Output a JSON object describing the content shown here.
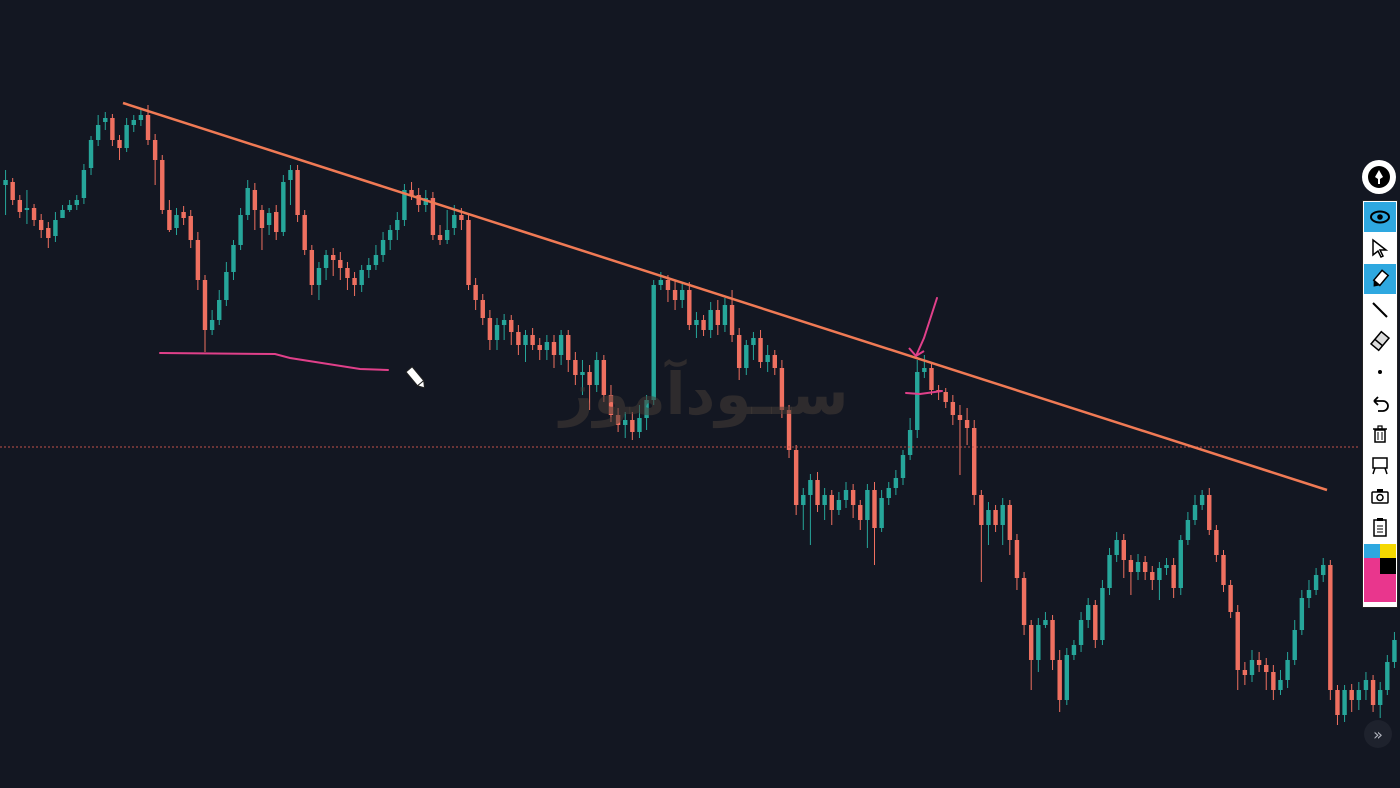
{
  "chart_data": {
    "type": "candlestick",
    "title": "",
    "xlabel": "",
    "ylabel": "",
    "grid": false,
    "ylim": [
      0,
      788
    ],
    "colors": {
      "up": "#26a69a",
      "down": "#ef7060",
      "background": "#131722",
      "trendline": "#f07a55",
      "drawing": "#e0408a",
      "hline": "#c0504a"
    },
    "candles": [
      [
        185,
        180,
        170,
        215
      ],
      [
        182,
        200,
        178,
        205
      ],
      [
        200,
        212,
        195,
        218
      ],
      [
        210,
        208,
        190,
        224
      ],
      [
        208,
        220,
        204,
        226
      ],
      [
        220,
        230,
        214,
        238
      ],
      [
        228,
        238,
        222,
        248
      ],
      [
        236,
        220,
        212,
        242
      ],
      [
        218,
        210,
        205,
        216
      ],
      [
        210,
        205,
        200,
        212
      ],
      [
        205,
        200,
        195,
        210
      ],
      [
        198,
        170,
        164,
        204
      ],
      [
        168,
        140,
        136,
        175
      ],
      [
        140,
        125,
        115,
        146
      ],
      [
        122,
        118,
        112,
        130
      ],
      [
        118,
        140,
        114,
        146
      ],
      [
        140,
        148,
        135,
        160
      ],
      [
        148,
        125,
        118,
        152
      ],
      [
        125,
        120,
        115,
        132
      ],
      [
        120,
        115,
        110,
        126
      ],
      [
        115,
        140,
        105,
        145
      ],
      [
        140,
        160,
        134,
        185
      ],
      [
        160,
        210,
        155,
        214
      ],
      [
        210,
        230,
        200,
        232
      ],
      [
        228,
        215,
        208,
        235
      ],
      [
        212,
        218,
        206,
        225
      ],
      [
        216,
        240,
        210,
        248
      ],
      [
        240,
        280,
        232,
        290
      ],
      [
        280,
        330,
        275,
        352
      ],
      [
        330,
        320,
        310,
        335
      ],
      [
        320,
        300,
        290,
        325
      ],
      [
        300,
        272,
        262,
        306
      ],
      [
        272,
        245,
        240,
        280
      ],
      [
        245,
        215,
        208,
        250
      ],
      [
        215,
        188,
        180,
        220
      ],
      [
        190,
        210,
        183,
        230
      ],
      [
        210,
        228,
        205,
        250
      ],
      [
        225,
        213,
        208,
        235
      ],
      [
        212,
        232,
        205,
        240
      ],
      [
        232,
        182,
        175,
        236
      ],
      [
        180,
        170,
        165,
        205
      ],
      [
        170,
        215,
        165,
        222
      ],
      [
        215,
        250,
        210,
        255
      ],
      [
        250,
        285,
        245,
        295
      ],
      [
        285,
        268,
        262,
        300
      ],
      [
        268,
        255,
        250,
        280
      ],
      [
        255,
        260,
        248,
        276
      ],
      [
        260,
        268,
        252,
        280
      ],
      [
        268,
        278,
        262,
        290
      ],
      [
        278,
        285,
        272,
        296
      ],
      [
        285,
        270,
        265,
        292
      ],
      [
        270,
        265,
        258,
        278
      ],
      [
        265,
        255,
        245,
        270
      ],
      [
        255,
        240,
        232,
        262
      ],
      [
        240,
        230,
        225,
        250
      ],
      [
        230,
        220,
        212,
        240
      ],
      [
        220,
        190,
        184,
        226
      ],
      [
        190,
        195,
        182,
        200
      ],
      [
        195,
        205,
        188,
        212
      ],
      [
        205,
        198,
        190,
        212
      ],
      [
        198,
        235,
        192,
        240
      ],
      [
        235,
        240,
        225,
        245
      ],
      [
        240,
        230,
        210,
        244
      ],
      [
        228,
        215,
        205,
        235
      ],
      [
        215,
        220,
        208,
        230
      ],
      [
        220,
        285,
        214,
        290
      ],
      [
        285,
        300,
        278,
        310
      ],
      [
        300,
        318,
        294,
        325
      ],
      [
        318,
        340,
        310,
        350
      ],
      [
        340,
        325,
        318,
        350
      ],
      [
        325,
        320,
        314,
        340
      ],
      [
        320,
        332,
        315,
        345
      ],
      [
        332,
        345,
        325,
        355
      ],
      [
        345,
        335,
        330,
        362
      ],
      [
        335,
        345,
        328,
        350
      ],
      [
        345,
        350,
        338,
        360
      ],
      [
        350,
        342,
        335,
        360
      ],
      [
        342,
        355,
        335,
        368
      ],
      [
        355,
        335,
        330,
        365
      ],
      [
        335,
        360,
        330,
        372
      ],
      [
        360,
        375,
        352,
        385
      ],
      [
        375,
        372,
        360,
        395
      ],
      [
        372,
        385,
        365,
        410
      ],
      [
        385,
        360,
        352,
        392
      ],
      [
        360,
        395,
        355,
        402
      ],
      [
        395,
        415,
        385,
        422
      ],
      [
        415,
        425,
        408,
        432
      ],
      [
        425,
        420,
        412,
        438
      ],
      [
        420,
        432,
        412,
        440
      ],
      [
        432,
        418,
        405,
        438
      ],
      [
        418,
        400,
        395,
        430
      ],
      [
        400,
        285,
        280,
        405
      ],
      [
        285,
        280,
        272,
        290
      ],
      [
        280,
        290,
        275,
        302
      ],
      [
        290,
        300,
        280,
        310
      ],
      [
        300,
        290,
        284,
        308
      ],
      [
        290,
        325,
        282,
        330
      ],
      [
        325,
        320,
        312,
        338
      ],
      [
        320,
        330,
        315,
        336
      ],
      [
        330,
        310,
        302,
        338
      ],
      [
        310,
        325,
        300,
        335
      ],
      [
        325,
        305,
        298,
        332
      ],
      [
        305,
        335,
        290,
        342
      ],
      [
        335,
        368,
        328,
        380
      ],
      [
        368,
        345,
        340,
        375
      ],
      [
        345,
        338,
        332,
        360
      ],
      [
        338,
        362,
        330,
        368
      ],
      [
        362,
        355,
        345,
        372
      ],
      [
        355,
        368,
        350,
        375
      ],
      [
        368,
        410,
        360,
        418
      ],
      [
        410,
        450,
        405,
        458
      ],
      [
        450,
        505,
        445,
        515
      ],
      [
        505,
        495,
        488,
        530
      ],
      [
        495,
        480,
        474,
        545
      ],
      [
        480,
        505,
        472,
        512
      ],
      [
        505,
        495,
        488,
        520
      ],
      [
        495,
        510,
        490,
        525
      ],
      [
        510,
        500,
        492,
        515
      ],
      [
        500,
        490,
        482,
        508
      ],
      [
        490,
        505,
        484,
        518
      ],
      [
        505,
        520,
        500,
        530
      ],
      [
        520,
        490,
        484,
        548
      ],
      [
        490,
        528,
        482,
        565
      ],
      [
        528,
        498,
        490,
        532
      ],
      [
        498,
        488,
        482,
        505
      ],
      [
        488,
        478,
        470,
        495
      ],
      [
        478,
        455,
        450,
        485
      ],
      [
        455,
        430,
        418,
        460
      ],
      [
        430,
        372,
        360,
        438
      ],
      [
        372,
        368,
        355,
        378
      ],
      [
        368,
        390,
        362,
        395
      ],
      [
        390,
        392,
        385,
        400
      ],
      [
        392,
        402,
        388,
        408
      ],
      [
        402,
        415,
        395,
        425
      ],
      [
        415,
        420,
        405,
        475
      ],
      [
        420,
        428,
        408,
        445
      ],
      [
        428,
        495,
        420,
        505
      ],
      [
        495,
        525,
        490,
        582
      ],
      [
        525,
        510,
        502,
        545
      ],
      [
        510,
        525,
        505,
        532
      ],
      [
        525,
        505,
        498,
        545
      ],
      [
        505,
        540,
        500,
        555
      ],
      [
        540,
        578,
        534,
        590
      ],
      [
        578,
        625,
        572,
        635
      ],
      [
        625,
        660,
        620,
        690
      ],
      [
        660,
        625,
        618,
        672
      ],
      [
        625,
        620,
        612,
        628
      ],
      [
        620,
        660,
        615,
        670
      ],
      [
        660,
        700,
        650,
        712
      ],
      [
        700,
        655,
        648,
        705
      ],
      [
        655,
        645,
        640,
        660
      ],
      [
        645,
        620,
        612,
        652
      ],
      [
        620,
        605,
        598,
        628
      ],
      [
        605,
        640,
        600,
        648
      ],
      [
        640,
        588,
        580,
        645
      ],
      [
        588,
        555,
        548,
        595
      ],
      [
        555,
        540,
        532,
        562
      ],
      [
        540,
        560,
        534,
        578
      ],
      [
        560,
        572,
        555,
        595
      ],
      [
        572,
        562,
        554,
        580
      ],
      [
        562,
        572,
        556,
        580
      ],
      [
        572,
        580,
        566,
        590
      ],
      [
        580,
        568,
        562,
        600
      ],
      [
        568,
        565,
        558,
        575
      ],
      [
        565,
        588,
        558,
        598
      ],
      [
        588,
        540,
        535,
        595
      ],
      [
        540,
        520,
        512,
        545
      ],
      [
        520,
        505,
        495,
        525
      ],
      [
        505,
        495,
        490,
        510
      ],
      [
        495,
        530,
        488,
        535
      ],
      [
        530,
        555,
        525,
        562
      ],
      [
        555,
        585,
        550,
        592
      ],
      [
        585,
        612,
        580,
        618
      ],
      [
        612,
        670,
        605,
        690
      ],
      [
        670,
        675,
        662,
        685
      ],
      [
        675,
        660,
        650,
        682
      ],
      [
        660,
        665,
        652,
        672
      ],
      [
        665,
        672,
        658,
        690
      ],
      [
        672,
        690,
        665,
        700
      ],
      [
        690,
        680,
        670,
        695
      ],
      [
        680,
        660,
        652,
        688
      ],
      [
        660,
        630,
        620,
        665
      ],
      [
        630,
        598,
        590,
        635
      ],
      [
        598,
        590,
        580,
        608
      ],
      [
        590,
        575,
        568,
        595
      ],
      [
        575,
        565,
        558,
        582
      ],
      [
        565,
        690,
        560,
        700
      ],
      [
        690,
        715,
        685,
        725
      ],
      [
        715,
        690,
        685,
        722
      ],
      [
        690,
        700,
        684,
        712
      ],
      [
        700,
        690,
        682,
        710
      ],
      [
        690,
        680,
        672,
        700
      ],
      [
        680,
        705,
        675,
        712
      ],
      [
        705,
        690,
        682,
        718
      ],
      [
        690,
        662,
        655,
        695
      ],
      [
        662,
        640,
        632,
        668
      ]
    ],
    "trendline": {
      "from": [
        123,
        103
      ],
      "to": [
        1327,
        490
      ]
    },
    "horizontal_line": {
      "y": 447
    },
    "drawings": [
      {
        "type": "polyline",
        "points": [
          [
            160,
            353
          ],
          [
            275,
            354
          ],
          [
            290,
            358
          ],
          [
            360,
            369
          ],
          [
            388,
            370
          ]
        ]
      },
      {
        "type": "arrow",
        "points": [
          [
            937,
            298
          ],
          [
            924,
            338
          ],
          [
            916,
            356
          ]
        ]
      },
      {
        "type": "polyline",
        "points": [
          [
            906,
            393
          ],
          [
            920,
            394
          ],
          [
            942,
            391
          ]
        ]
      }
    ]
  },
  "watermark": {
    "text": "ســودآموز"
  },
  "toolbar": {
    "tools": [
      {
        "name": "eye-icon",
        "active": true
      },
      {
        "name": "cursor-icon",
        "active": false
      },
      {
        "name": "highlighter-icon",
        "active": true
      },
      {
        "name": "line-icon",
        "active": false
      },
      {
        "name": "eraser-icon",
        "active": false
      },
      {
        "name": "dot-icon",
        "active": false
      },
      {
        "name": "undo-icon",
        "active": false
      },
      {
        "name": "trash-icon",
        "active": false
      },
      {
        "name": "clear-board-icon",
        "active": false
      },
      {
        "name": "camera-icon",
        "active": false
      },
      {
        "name": "clipboard-icon",
        "active": false
      }
    ],
    "palette": [
      "#2ea8e0",
      "#f5d800",
      "#000000",
      "#e9368d"
    ]
  }
}
